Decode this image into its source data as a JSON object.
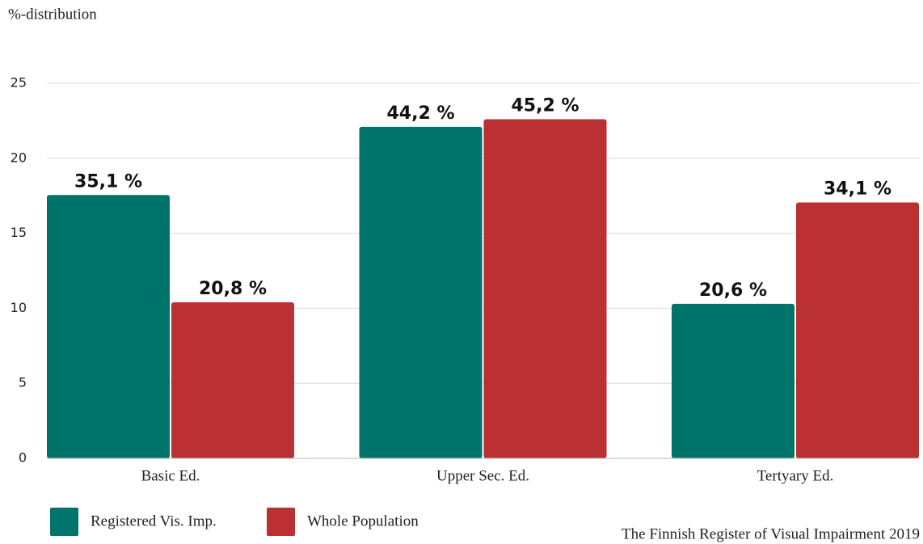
{
  "chart_data": {
    "type": "bar",
    "title": "%-distribution",
    "source": "The Finnish Register of Visual Impairment 2019",
    "categories": [
      "Basic Ed.",
      "Upper Sec. Ed.",
      "Tertyary Ed."
    ],
    "series": [
      {
        "name": "Registered Vis. Imp.",
        "color": "#00736a",
        "values": [
          17.55,
          22.1,
          10.3
        ],
        "value_labels": [
          "35,1 %",
          "44,2 %",
          "20,6 %"
        ]
      },
      {
        "name": "Whole Population",
        "color": "#bb3033",
        "values": [
          10.4,
          22.6,
          17.05
        ],
        "value_labels": [
          "20,8 %",
          "45,2 %",
          "34,1 %"
        ]
      }
    ],
    "ylim": [
      0,
      25
    ],
    "yticks": [
      0,
      5,
      10,
      15,
      20,
      25
    ],
    "grid": true
  }
}
